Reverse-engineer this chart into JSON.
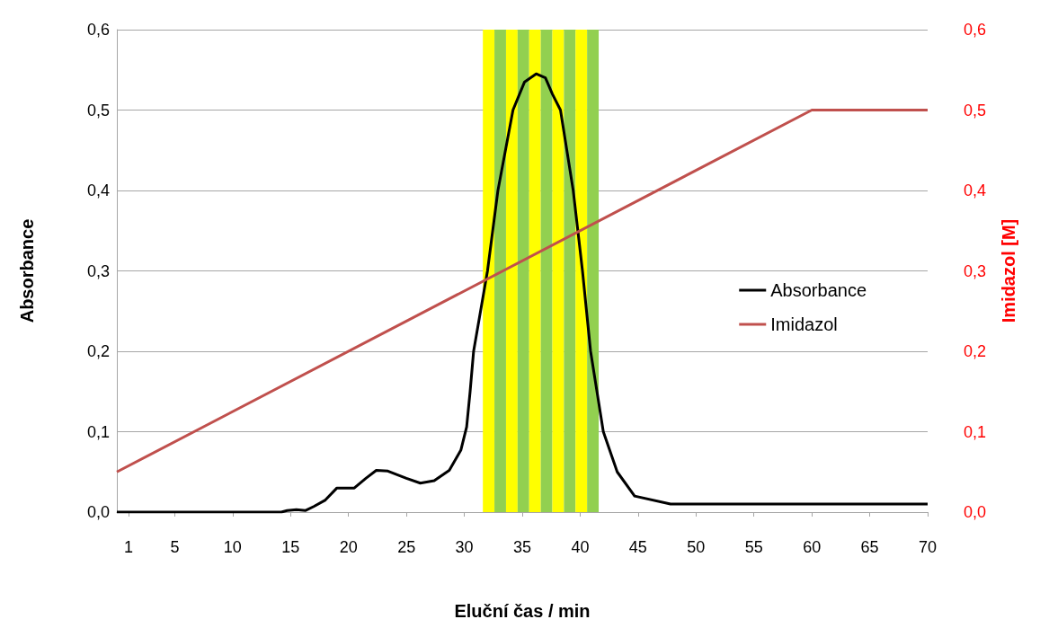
{
  "chart_data": {
    "type": "line",
    "xlabel": "Eluční čas / min",
    "ylabel": "Absorbance",
    "y2label": "Imidazol [M]",
    "xlim": [
      0,
      70
    ],
    "xticks": [
      1,
      5,
      10,
      15,
      20,
      25,
      30,
      35,
      40,
      45,
      50,
      55,
      60,
      65,
      70
    ],
    "ylim": [
      0,
      0.6
    ],
    "yticks": [
      {
        "value": 0,
        "label": "0,0"
      },
      {
        "value": 0.1,
        "label": "0,1"
      },
      {
        "value": 0.2,
        "label": "0,2"
      },
      {
        "value": 0.3,
        "label": "0,3"
      },
      {
        "value": 0.4,
        "label": "0,4"
      },
      {
        "value": 0.5,
        "label": "0,5"
      },
      {
        "value": 0.6,
        "label": "0,6"
      }
    ],
    "y2lim": [
      0,
      0.6
    ],
    "y2ticks": [
      {
        "value": 0,
        "label": "0,0"
      },
      {
        "value": 0.1,
        "label": "0,1"
      },
      {
        "value": 0.2,
        "label": "0,2"
      },
      {
        "value": 0.3,
        "label": "0,3"
      },
      {
        "value": 0.4,
        "label": "0,4"
      },
      {
        "value": 0.5,
        "label": "0,5"
      },
      {
        "value": 0.6,
        "label": "0,6"
      }
    ],
    "grid": "y",
    "legend": "right",
    "marker": "none",
    "line_style": "solid",
    "bands": [
      {
        "axis": "x",
        "from": 31.6,
        "to": 32.6,
        "color": "#ffff00"
      },
      {
        "axis": "x",
        "from": 32.6,
        "to": 33.6,
        "color": "#92d050"
      },
      {
        "axis": "x",
        "from": 33.6,
        "to": 34.6,
        "color": "#ffff00"
      },
      {
        "axis": "x",
        "from": 34.6,
        "to": 35.6,
        "color": "#92d050"
      },
      {
        "axis": "x",
        "from": 35.6,
        "to": 36.6,
        "color": "#ffff00"
      },
      {
        "axis": "x",
        "from": 36.6,
        "to": 37.6,
        "color": "#92d050"
      },
      {
        "axis": "x",
        "from": 37.6,
        "to": 38.6,
        "color": "#ffff00"
      },
      {
        "axis": "x",
        "from": 38.6,
        "to": 39.6,
        "color": "#92d050"
      },
      {
        "axis": "x",
        "from": 39.6,
        "to": 40.6,
        "color": "#ffff00"
      },
      {
        "axis": "x",
        "from": 40.6,
        "to": 41.6,
        "color": "#92d050"
      }
    ],
    "series": [
      {
        "name": "Absorbance",
        "color": "#000000",
        "x": [
          0,
          4,
          10,
          14.2,
          14.7,
          15.5,
          16.3,
          17,
          18,
          19,
          20.5,
          21.5,
          22.4,
          23.4,
          25,
          26.2,
          27.4,
          28.7,
          29.7,
          30.2,
          30.5,
          30.8,
          32,
          32.9,
          34.2,
          35.2,
          36.2,
          37,
          37.6,
          38.3,
          39.4,
          40.2,
          40.9,
          42,
          43.2,
          44.7,
          47.8,
          70
        ],
        "values": [
          0,
          0,
          0,
          0,
          0.002,
          0.003,
          0.002,
          0.007,
          0.015,
          0.03,
          0.03,
          0.042,
          0.052,
          0.051,
          0.042,
          0.036,
          0.039,
          0.052,
          0.077,
          0.106,
          0.15,
          0.2,
          0.3,
          0.4,
          0.5,
          0.535,
          0.545,
          0.54,
          0.52,
          0.5,
          0.4,
          0.3,
          0.2,
          0.1,
          0.05,
          0.02,
          0.01,
          0.01
        ]
      },
      {
        "name": "Imidazol",
        "color": "#c0504d",
        "axis": "y2",
        "x": [
          0,
          60,
          70
        ],
        "values": [
          0.05,
          0.5,
          0.5
        ]
      }
    ]
  }
}
